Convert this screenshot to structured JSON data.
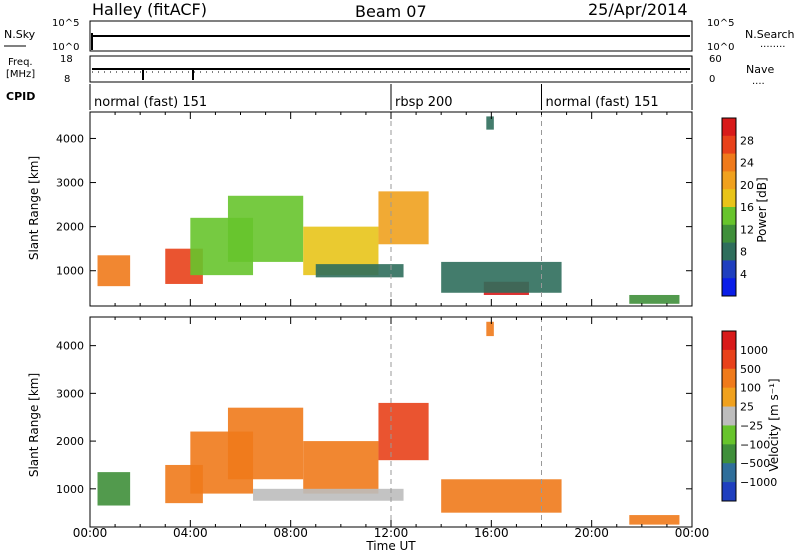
{
  "header": {
    "title_left": "Halley (fitACF)",
    "title_center": "Beam 07",
    "title_right": "25/Apr/2014"
  },
  "nsky_panel": {
    "left_label": "N.Sky",
    "left_ticks": [
      "10^5",
      "10^0"
    ],
    "right_label": "N.Search",
    "right_ticks": [
      "10^5",
      "10^0"
    ],
    "right_legend_dots": "........"
  },
  "freq_panel": {
    "left_label_line1": "Freq.",
    "left_label_line2": "[MHz]",
    "left_ticks": [
      "18",
      "8"
    ],
    "right_label": "Nave",
    "right_ticks": [
      "60",
      "0"
    ],
    "right_legend_dots": "...."
  },
  "cpid_panel": {
    "label": "CPID",
    "segments": [
      {
        "name": "normal (fast) 151",
        "start_hour": 0
      },
      {
        "name": "rbsp 200",
        "start_hour": 12
      },
      {
        "name": "normal (fast) 151",
        "start_hour": 18
      }
    ]
  },
  "x_axis": {
    "label": "Time UT",
    "ticks": [
      "00:00",
      "04:00",
      "08:00",
      "12:00",
      "16:00",
      "20:00",
      "00:00"
    ],
    "range_hours": [
      0,
      24
    ]
  },
  "power_panel": {
    "ylabel": "Slant Range [km]",
    "yticks": [
      "1000",
      "2000",
      "3000",
      "4000"
    ],
    "colorbar_label": "Power [dB]",
    "colorbar_ticks": [
      "4",
      "8",
      "12",
      "16",
      "20",
      "24",
      "28"
    ],
    "colors": [
      "#0a1ee8",
      "#1f3fbf",
      "#2f6e5c",
      "#3f8f3a",
      "#67c42c",
      "#e8c419",
      "#f0a11e",
      "#ef7a1b",
      "#e8411a",
      "#d81a1a"
    ]
  },
  "velocity_panel": {
    "ylabel": "Slant Range [km]",
    "yticks": [
      "1000",
      "2000",
      "3000",
      "4000"
    ],
    "colorbar_label": "Velocity [m s⁻¹]",
    "colorbar_ticks": [
      "1000",
      "500",
      "100",
      "25",
      "−25",
      "−100",
      "−500",
      "−1000"
    ],
    "colors": [
      "#1f3fbf",
      "#2f6e9a",
      "#3f8f3a",
      "#67c42c",
      "#bdbdbd",
      "#f0a11e",
      "#ef7a1b",
      "#e8411a",
      "#d81a1a"
    ]
  },
  "chart_data": {
    "type": "heatmap",
    "x": "Time UT (hours)",
    "xlim": [
      0,
      24
    ],
    "ylim_km": [
      200,
      4600
    ],
    "mode_changes_hours": [
      12,
      18
    ],
    "power_patches": [
      {
        "t0": 0.3,
        "t1": 1.6,
        "r0": 650,
        "r1": 1350,
        "power_db": 22
      },
      {
        "t0": 3.0,
        "t1": 4.5,
        "r0": 700,
        "r1": 1500,
        "power_db": 24
      },
      {
        "t0": 4.0,
        "t1": 6.5,
        "r0": 900,
        "r1": 2200,
        "power_db": 14
      },
      {
        "t0": 5.5,
        "t1": 8.5,
        "r0": 1200,
        "r1": 2700,
        "power_db": 12
      },
      {
        "t0": 8.5,
        "t1": 11.5,
        "r0": 900,
        "r1": 2000,
        "power_db": 16
      },
      {
        "t0": 11.5,
        "t1": 13.5,
        "r0": 1600,
        "r1": 2800,
        "power_db": 20
      },
      {
        "t0": 9.0,
        "t1": 12.5,
        "r0": 850,
        "r1": 1150,
        "power_db": 6
      },
      {
        "t0": 15.7,
        "t1": 17.5,
        "r0": 450,
        "r1": 750,
        "power_db": 28
      },
      {
        "t0": 14.0,
        "t1": 18.8,
        "r0": 500,
        "r1": 1200,
        "power_db": 6
      },
      {
        "t0": 21.5,
        "t1": 23.5,
        "r0": 250,
        "r1": 450,
        "power_db": 10
      },
      {
        "t0": 15.8,
        "t1": 16.1,
        "r0": 4200,
        "r1": 4500,
        "power_db": 6
      }
    ],
    "velocity_patches": [
      {
        "t0": 0.3,
        "t1": 1.6,
        "r0": 650,
        "r1": 1350,
        "velocity_ms": 80
      },
      {
        "t0": 3.0,
        "t1": 4.5,
        "r0": 700,
        "r1": 1500,
        "velocity_ms": -150
      },
      {
        "t0": 4.0,
        "t1": 6.5,
        "r0": 900,
        "r1": 2200,
        "velocity_ms": -200
      },
      {
        "t0": 5.5,
        "t1": 8.5,
        "r0": 1200,
        "r1": 2700,
        "velocity_ms": -300
      },
      {
        "t0": 8.5,
        "t1": 11.5,
        "r0": 900,
        "r1": 2000,
        "velocity_ms": -250
      },
      {
        "t0": 11.5,
        "t1": 13.5,
        "r0": 1600,
        "r1": 2800,
        "velocity_ms": -400
      },
      {
        "t0": 6.5,
        "t1": 12.5,
        "r0": 750,
        "r1": 1000,
        "velocity_ms": 0
      },
      {
        "t0": 14.0,
        "t1": 18.8,
        "r0": 500,
        "r1": 1200,
        "velocity_ms": -100
      },
      {
        "t0": 21.5,
        "t1": 23.5,
        "r0": 250,
        "r1": 450,
        "velocity_ms": -80
      },
      {
        "t0": 15.8,
        "t1": 16.1,
        "r0": 4200,
        "r1": 4500,
        "velocity_ms": -150
      }
    ]
  }
}
